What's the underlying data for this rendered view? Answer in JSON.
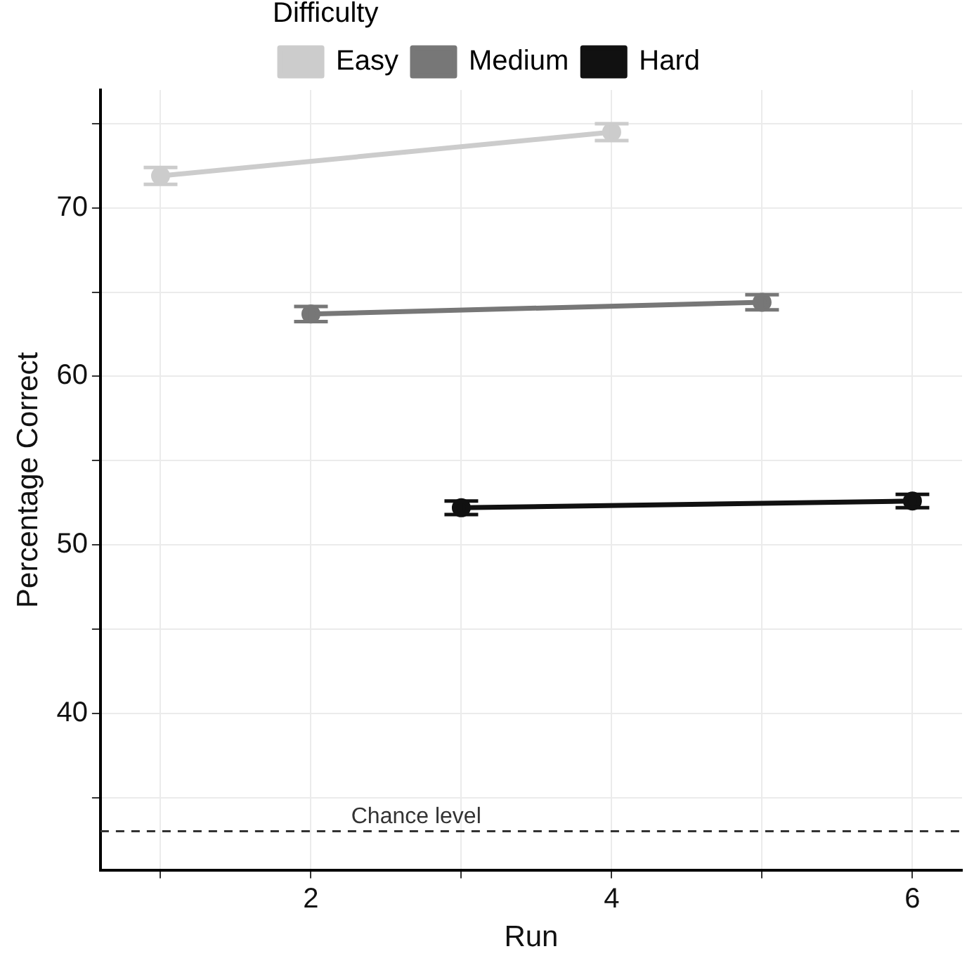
{
  "chart_data": {
    "type": "line",
    "xlabel": "Run",
    "ylabel": "Percentage Correct",
    "legend_title": "Difficulty",
    "legend": "top",
    "marker": "circle",
    "grid": true,
    "xlim": [
      0.6,
      6.33
    ],
    "xticks": [
      {
        "value": 1,
        "label": null
      },
      2,
      {
        "value": 3,
        "label": null
      },
      4,
      {
        "value": 5,
        "label": null
      },
      6
    ],
    "ylim": [
      30.7,
      77
    ],
    "yticks": [
      {
        "value": 35,
        "label": null
      },
      40,
      {
        "value": 45,
        "label": null
      },
      50,
      {
        "value": 55,
        "label": null
      },
      60,
      {
        "value": 65,
        "label": null
      },
      70,
      {
        "value": 75,
        "label": null
      }
    ],
    "series": [
      {
        "name": "Easy",
        "color": "#cccccc",
        "x": [
          1,
          4
        ],
        "values": [
          71.9,
          74.5
        ],
        "errors": [
          0.5,
          0.5
        ]
      },
      {
        "name": "Medium",
        "color": "#777777",
        "x": [
          2,
          5
        ],
        "values": [
          63.7,
          64.4
        ],
        "errors": [
          0.45,
          0.45
        ]
      },
      {
        "name": "Hard",
        "color": "#111111",
        "x": [
          3,
          6
        ],
        "values": [
          52.2,
          52.6
        ],
        "errors": [
          0.4,
          0.4
        ]
      }
    ],
    "ref_lines": [
      {
        "axis": "y",
        "value": 33,
        "label": "Chance level",
        "color": "#333333",
        "line_style": "dashed"
      }
    ]
  }
}
